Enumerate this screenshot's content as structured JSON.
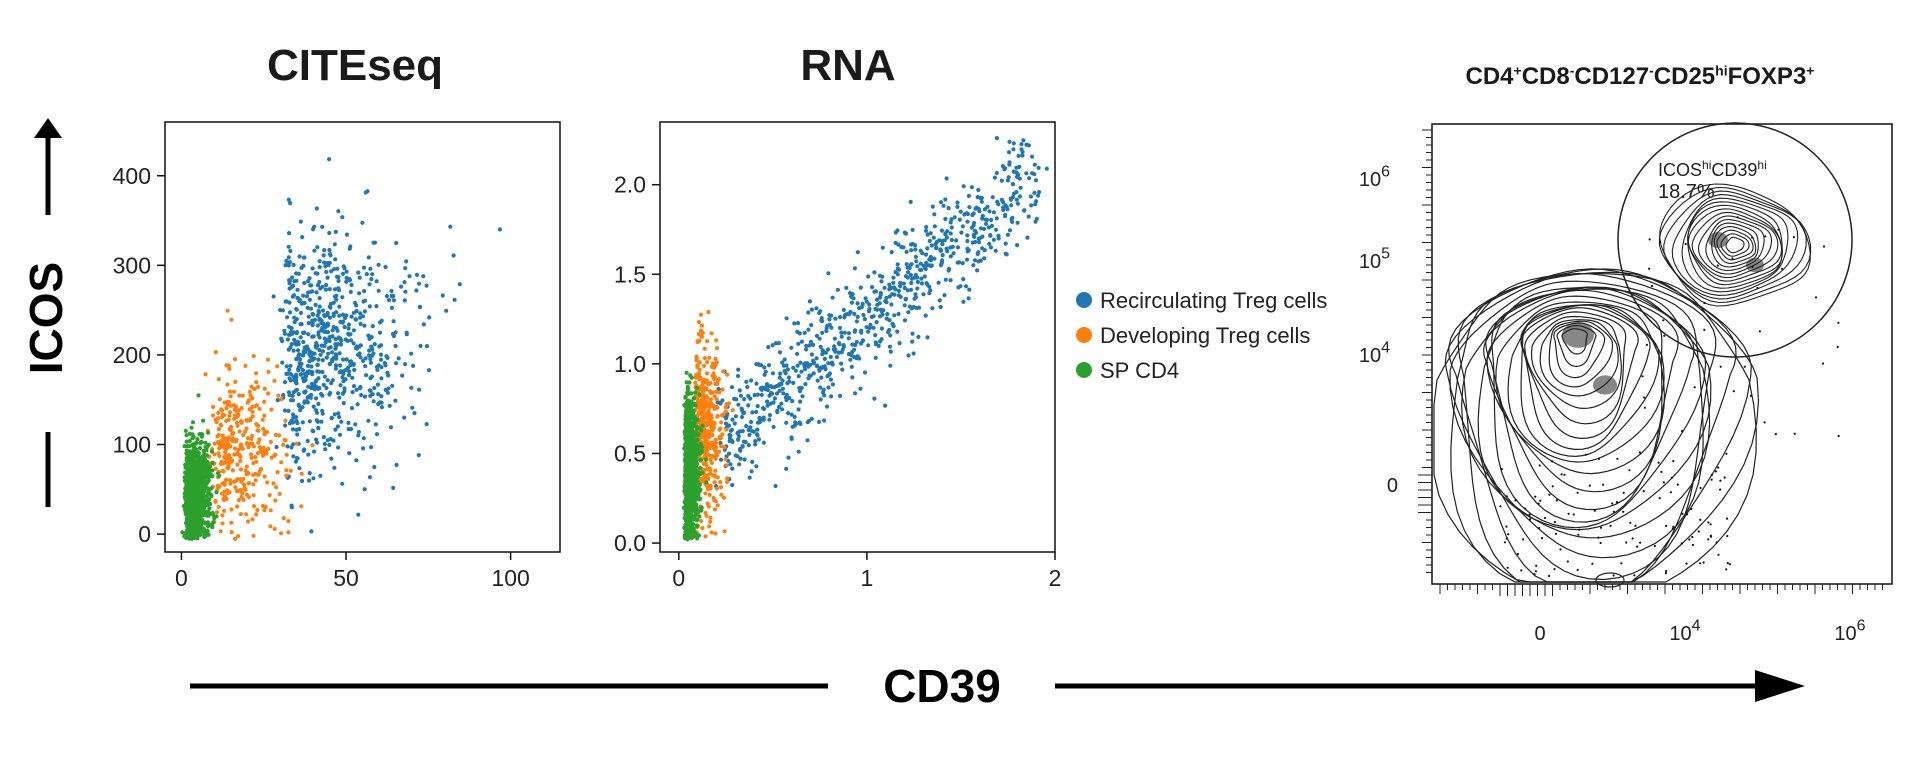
{
  "figure": {
    "shared_ylabel": "ICOS",
    "shared_xlabel": "CD39"
  },
  "legend": {
    "entries": [
      {
        "label": "Recirculating Treg cells",
        "color": "#1f77b4"
      },
      {
        "label": "Developing Treg cells",
        "color": "#ff7f0e"
      },
      {
        "label": "SP CD4",
        "color": "#2ca02c"
      }
    ]
  },
  "chart_data": [
    {
      "type": "scatter",
      "title": "CITEseq",
      "xlim": [
        -5,
        115
      ],
      "ylim": [
        -20,
        460
      ],
      "xticks": [
        0,
        50,
        100
      ],
      "yticks": [
        0,
        100,
        200,
        300,
        400
      ],
      "series": [
        {
          "name": "Recirculating Treg cells",
          "color": "#1f77b4",
          "n": 700,
          "x_center": 35,
          "x_spread": 16,
          "y_center": 210,
          "y_spread": 70
        },
        {
          "name": "Developing Treg cells",
          "color": "#ff7f0e",
          "n": 350,
          "x_center": 12,
          "x_spread": 10,
          "y_center": 95,
          "y_spread": 45
        },
        {
          "name": "SP CD4",
          "color": "#2ca02c",
          "n": 1200,
          "x_center": 2,
          "x_spread": 3,
          "y_center": 45,
          "y_spread": 28
        }
      ]
    },
    {
      "type": "scatter",
      "title": "RNA",
      "xlim": [
        -0.1,
        2.0
      ],
      "ylim": [
        -0.05,
        2.35
      ],
      "xticks": [
        0,
        1,
        2
      ],
      "yticks": [
        0.0,
        0.5,
        1.0,
        1.5,
        2.0
      ],
      "ytick_labels": [
        "0.0",
        "0.5",
        "1.0",
        "1.5",
        "2.0"
      ],
      "series": [
        {
          "name": "Recirculating Treg cells",
          "color": "#1f77b4",
          "n": 800,
          "x_range": [
            0.2,
            1.9
          ],
          "y_at_x_min": 0.55,
          "y_at_x_max": 2.05,
          "y_spread": 0.15
        },
        {
          "name": "Developing Treg cells",
          "color": "#ff7f0e",
          "n": 450,
          "x_center": 0.1,
          "x_spread": 0.06,
          "y_center": 0.65,
          "y_spread": 0.25
        },
        {
          "name": "SP CD4",
          "color": "#2ca02c",
          "n": 1100,
          "x_center": 0.04,
          "x_spread": 0.03,
          "y_center": 0.4,
          "y_spread": 0.2
        }
      ]
    },
    {
      "type": "contour",
      "title_parts": [
        {
          "t": "CD4",
          "s": "+"
        },
        {
          "t": "CD8",
          "s": "-"
        },
        {
          "t": "CD127",
          "s": "-"
        },
        {
          "t": "CD25",
          "s": "hi"
        },
        {
          "t": "FOXP3",
          "s": "+"
        }
      ],
      "xtick_labels": [
        {
          "base": "0",
          "exp": ""
        },
        {
          "base": "10",
          "exp": "4"
        },
        {
          "base": "10",
          "exp": "6"
        }
      ],
      "ytick_labels": [
        {
          "base": "0",
          "exp": ""
        },
        {
          "base": "10",
          "exp": "4"
        },
        {
          "base": "10",
          "exp": "5"
        },
        {
          "base": "10",
          "exp": "6"
        }
      ],
      "gate": {
        "name_parts": [
          {
            "t": "ICOS",
            "s": "hi"
          },
          {
            "t": "CD39",
            "s": "hi"
          }
        ],
        "percent": "18.7%"
      }
    }
  ]
}
